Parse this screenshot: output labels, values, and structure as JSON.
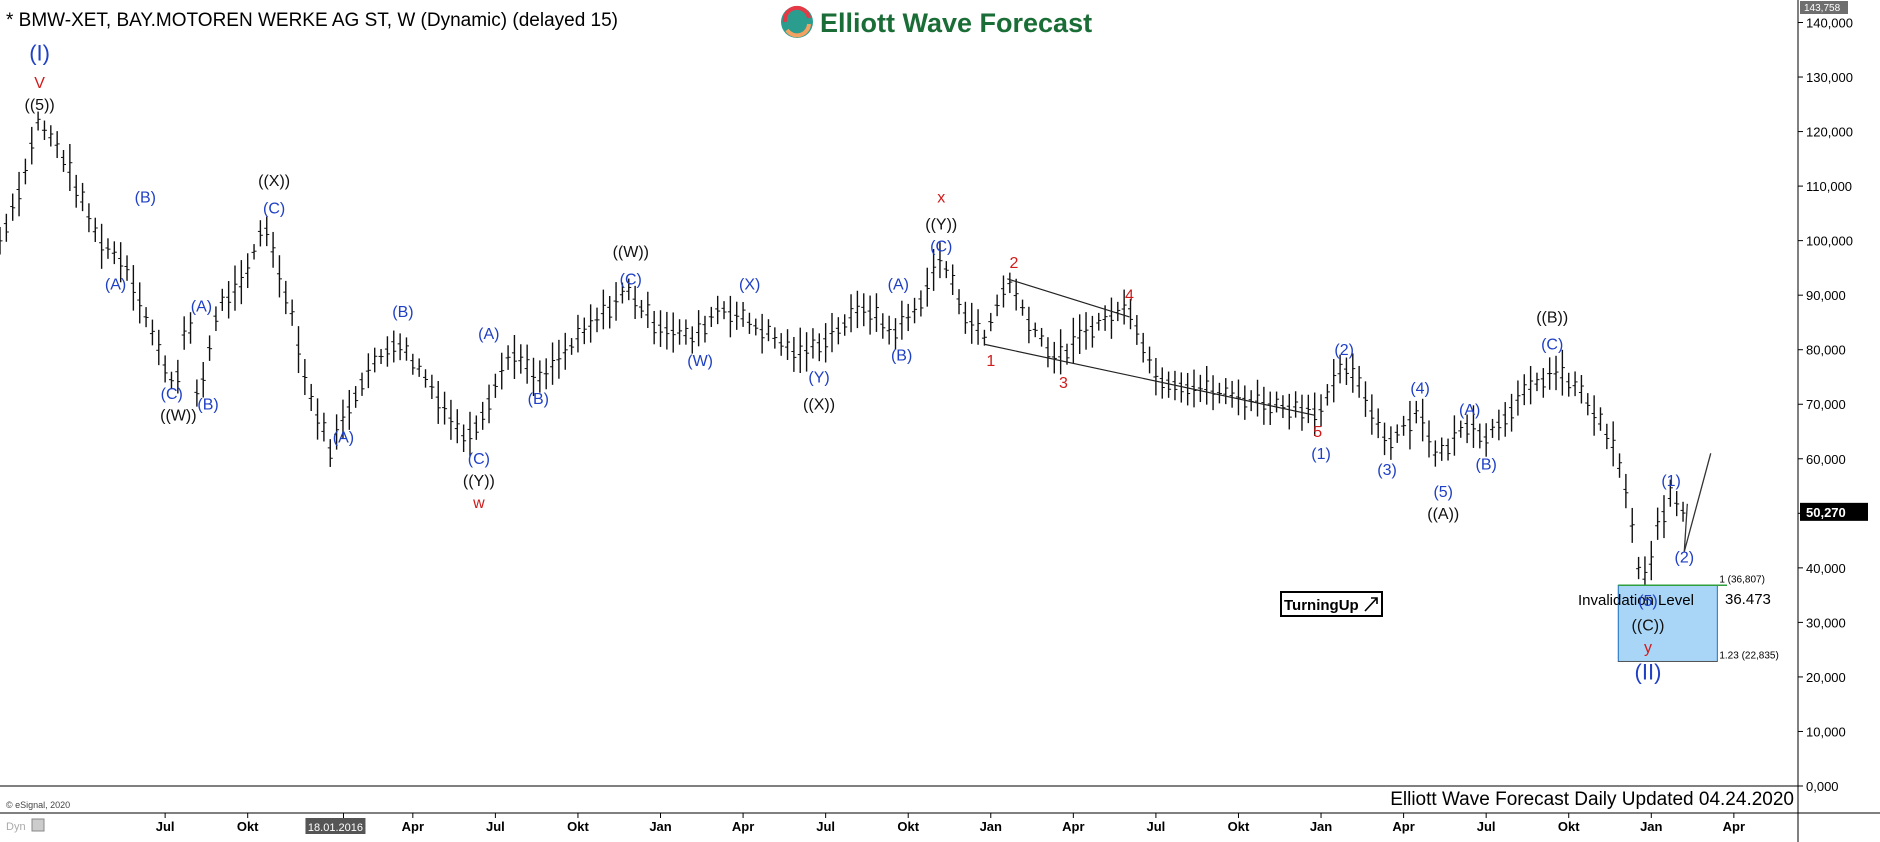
{
  "header": {
    "title": "* BMW-XET, BAY.MOTOREN WERKE AG ST, W (Dynamic) (delayed 15)",
    "logo_text": "Elliott Wave Forecast"
  },
  "colors": {
    "blue_label": "#1f3fc4",
    "red_label": "#d11b1b",
    "black_label": "#111111",
    "box_fill": "#a9d6f7",
    "box_stroke": "#1c6fbf",
    "green_line": "#2e9e3e",
    "logo_green": "#1a6d36"
  },
  "footer": {
    "updated": "Elliott Wave Forecast Daily Updated 04.24.2020",
    "copyright": "© eSignal, 2020",
    "dyn": "Dyn"
  },
  "turning_up_badge": "TurningUp",
  "box_labels": {
    "fib1": "1 (36,807)",
    "fib123": "1.23 (22,835)",
    "invalidation": "Invalidation Level",
    "invalidation_value": "36.473"
  },
  "chart_data": {
    "type": "ohlc",
    "ylim": [
      0,
      143758
    ],
    "y_ticks": [
      "0,000",
      "10,000",
      "20,000",
      "30,000",
      "40,000",
      "50,000",
      "60,000",
      "70,000",
      "80,000",
      "90,000",
      "100,000",
      "110,000",
      "120,000",
      "130,000",
      "140,000"
    ],
    "y_tick_values": [
      0,
      10000,
      20000,
      30000,
      40000,
      50000,
      60000,
      70000,
      80000,
      90000,
      100000,
      110000,
      120000,
      130000,
      140000
    ],
    "y_max_label": "143,758",
    "last_price_label": "50,270",
    "last_price": 50270,
    "x_start": 2015.0,
    "x_end": 2020.42,
    "x_ticks": [
      {
        "label": "Jul",
        "x": 2015.5
      },
      {
        "label": "Okt",
        "x": 2015.75
      },
      {
        "label": "18.01.2016",
        "x": 2016.04,
        "highlight": true
      },
      {
        "label": "Apr",
        "x": 2016.25
      },
      {
        "label": "Jul",
        "x": 2016.5
      },
      {
        "label": "Okt",
        "x": 2016.75
      },
      {
        "label": "Jan",
        "x": 2017.0
      },
      {
        "label": "Apr",
        "x": 2017.25
      },
      {
        "label": "Jul",
        "x": 2017.5
      },
      {
        "label": "Okt",
        "x": 2017.75
      },
      {
        "label": "Jan",
        "x": 2018.0
      },
      {
        "label": "Apr",
        "x": 2018.25
      },
      {
        "label": "Jul",
        "x": 2018.5
      },
      {
        "label": "Okt",
        "x": 2018.75
      },
      {
        "label": "Jan",
        "x": 2019.0
      },
      {
        "label": "Apr",
        "x": 2019.25
      },
      {
        "label": "Jul",
        "x": 2019.5
      },
      {
        "label": "Okt",
        "x": 2019.75
      },
      {
        "label": "Jan",
        "x": 2020.0
      },
      {
        "label": "Apr",
        "x": 2020.25
      }
    ],
    "path": [
      [
        2015.0,
        100000
      ],
      [
        2015.08,
        113000
      ],
      [
        2015.11,
        122000
      ],
      [
        2015.18,
        117000
      ],
      [
        2015.3,
        100000
      ],
      [
        2015.38,
        96000
      ],
      [
        2015.48,
        80000
      ],
      [
        2015.53,
        73000
      ],
      [
        2015.57,
        87000
      ],
      [
        2015.6,
        70000
      ],
      [
        2015.66,
        88000
      ],
      [
        2015.74,
        92000
      ],
      [
        2015.8,
        104000
      ],
      [
        2015.84,
        95000
      ],
      [
        2015.88,
        88000
      ],
      [
        2015.93,
        73000
      ],
      [
        2016.0,
        62000
      ],
      [
        2016.1,
        75000
      ],
      [
        2016.2,
        82000
      ],
      [
        2016.3,
        74000
      ],
      [
        2016.4,
        64000
      ],
      [
        2016.45,
        67000
      ],
      [
        2016.55,
        80000
      ],
      [
        2016.63,
        74000
      ],
      [
        2016.75,
        82000
      ],
      [
        2016.9,
        91000
      ],
      [
        2016.98,
        85000
      ],
      [
        2017.1,
        82000
      ],
      [
        2017.18,
        88000
      ],
      [
        2017.3,
        84000
      ],
      [
        2017.42,
        79000
      ],
      [
        2017.5,
        82000
      ],
      [
        2017.62,
        88000
      ],
      [
        2017.7,
        83000
      ],
      [
        2017.77,
        87000
      ],
      [
        2017.85,
        97000
      ],
      [
        2017.92,
        87000
      ],
      [
        2017.98,
        82000
      ],
      [
        2018.05,
        93000
      ],
      [
        2018.12,
        85000
      ],
      [
        2018.2,
        78000
      ],
      [
        2018.3,
        84000
      ],
      [
        2018.42,
        88000
      ],
      [
        2018.5,
        75000
      ],
      [
        2018.7,
        72000
      ],
      [
        2018.85,
        70000
      ],
      [
        2019.0,
        69000
      ],
      [
        2019.07,
        77000
      ],
      [
        2019.12,
        73000
      ],
      [
        2019.2,
        63000
      ],
      [
        2019.3,
        69000
      ],
      [
        2019.35,
        60000
      ],
      [
        2019.45,
        67000
      ],
      [
        2019.5,
        64000
      ],
      [
        2019.6,
        71000
      ],
      [
        2019.7,
        76000
      ],
      [
        2019.78,
        73000
      ],
      [
        2019.88,
        63000
      ],
      [
        2019.93,
        53000
      ],
      [
        2019.96,
        40000
      ],
      [
        2019.99,
        37000
      ],
      [
        2020.02,
        48000
      ],
      [
        2020.06,
        53000
      ],
      [
        2020.1,
        50270
      ]
    ],
    "wave_labels": [
      {
        "text": "(I)",
        "x": 2015.12,
        "y": 133000,
        "color": "blue",
        "size": "lg"
      },
      {
        "text": "V",
        "x": 2015.12,
        "y": 128000,
        "color": "red"
      },
      {
        "text": "((5))",
        "x": 2015.12,
        "y": 124000,
        "color": "black"
      },
      {
        "text": "(B)",
        "x": 2015.44,
        "y": 107000,
        "color": "blue"
      },
      {
        "text": "(A)",
        "x": 2015.35,
        "y": 91000,
        "color": "blue"
      },
      {
        "text": "(C)",
        "x": 2015.52,
        "y": 71000,
        "color": "blue"
      },
      {
        "text": "((W))",
        "x": 2015.54,
        "y": 67000,
        "color": "black"
      },
      {
        "text": "(A)",
        "x": 2015.61,
        "y": 87000,
        "color": "blue"
      },
      {
        "text": "(B)",
        "x": 2015.63,
        "y": 69000,
        "color": "blue"
      },
      {
        "text": "((X))",
        "x": 2015.83,
        "y": 110000,
        "color": "black"
      },
      {
        "text": "(C)",
        "x": 2015.83,
        "y": 105000,
        "color": "blue"
      },
      {
        "text": "(A)",
        "x": 2016.04,
        "y": 63000,
        "color": "blue"
      },
      {
        "text": "(B)",
        "x": 2016.22,
        "y": 86000,
        "color": "blue"
      },
      {
        "text": "(A)",
        "x": 2016.48,
        "y": 82000,
        "color": "blue"
      },
      {
        "text": "(B)",
        "x": 2016.63,
        "y": 70000,
        "color": "blue"
      },
      {
        "text": "(C)",
        "x": 2016.45,
        "y": 59000,
        "color": "blue"
      },
      {
        "text": "((Y))",
        "x": 2016.45,
        "y": 55000,
        "color": "black"
      },
      {
        "text": "w",
        "x": 2016.45,
        "y": 51000,
        "color": "red"
      },
      {
        "text": "((W))",
        "x": 2016.91,
        "y": 97000,
        "color": "black"
      },
      {
        "text": "(C)",
        "x": 2016.91,
        "y": 92000,
        "color": "blue"
      },
      {
        "text": "(X)",
        "x": 2017.27,
        "y": 91000,
        "color": "blue"
      },
      {
        "text": "(W)",
        "x": 2017.12,
        "y": 77000,
        "color": "blue"
      },
      {
        "text": "(Y)",
        "x": 2017.48,
        "y": 74000,
        "color": "blue"
      },
      {
        "text": "((X))",
        "x": 2017.48,
        "y": 69000,
        "color": "black"
      },
      {
        "text": "(A)",
        "x": 2017.72,
        "y": 91000,
        "color": "blue"
      },
      {
        "text": "(B)",
        "x": 2017.73,
        "y": 78000,
        "color": "blue"
      },
      {
        "text": "x",
        "x": 2017.85,
        "y": 107000,
        "color": "red"
      },
      {
        "text": "((Y))",
        "x": 2017.85,
        "y": 102000,
        "color": "black"
      },
      {
        "text": "(C)",
        "x": 2017.85,
        "y": 98000,
        "color": "blue"
      },
      {
        "text": "2",
        "x": 2018.07,
        "y": 95000,
        "color": "red"
      },
      {
        "text": "1",
        "x": 2018.0,
        "y": 77000,
        "color": "red"
      },
      {
        "text": "3",
        "x": 2018.22,
        "y": 73000,
        "color": "red"
      },
      {
        "text": "4",
        "x": 2018.42,
        "y": 89000,
        "color": "red"
      },
      {
        "text": "5",
        "x": 2018.99,
        "y": 64000,
        "color": "red"
      },
      {
        "text": "(1)",
        "x": 2019.0,
        "y": 60000,
        "color": "blue"
      },
      {
        "text": "(2)",
        "x": 2019.07,
        "y": 79000,
        "color": "blue"
      },
      {
        "text": "(3)",
        "x": 2019.2,
        "y": 57000,
        "color": "blue"
      },
      {
        "text": "(4)",
        "x": 2019.3,
        "y": 72000,
        "color": "blue"
      },
      {
        "text": "(5)",
        "x": 2019.37,
        "y": 53000,
        "color": "blue"
      },
      {
        "text": "((A))",
        "x": 2019.37,
        "y": 49000,
        "color": "black"
      },
      {
        "text": "(A)",
        "x": 2019.45,
        "y": 68000,
        "color": "blue"
      },
      {
        "text": "(B)",
        "x": 2019.5,
        "y": 58000,
        "color": "blue"
      },
      {
        "text": "((B))",
        "x": 2019.7,
        "y": 85000,
        "color": "black"
      },
      {
        "text": "(C)",
        "x": 2019.7,
        "y": 80000,
        "color": "blue"
      },
      {
        "text": "(1)",
        "x": 2020.06,
        "y": 55000,
        "color": "blue"
      },
      {
        "text": "(2)",
        "x": 2020.1,
        "y": 41000,
        "color": "blue"
      },
      {
        "text": "(5)",
        "x": 2019.99,
        "y": 33000,
        "color": "blue"
      },
      {
        "text": "((C))",
        "x": 2019.99,
        "y": 28500,
        "color": "black"
      },
      {
        "text": "y",
        "x": 2019.99,
        "y": 24500,
        "color": "red"
      },
      {
        "text": "(II)",
        "x": 2019.99,
        "y": 19500,
        "color": "blue",
        "size": "lg"
      }
    ],
    "channel_lines": [
      [
        [
          2017.98,
          81000
        ],
        [
          2018.98,
          68000
        ]
      ],
      [
        [
          2018.05,
          93000
        ],
        [
          2018.42,
          86000
        ]
      ]
    ],
    "projection": [
      [
        2020.1,
        43000
      ],
      [
        2020.18,
        61000
      ]
    ],
    "target_box": {
      "x0": 2019.9,
      "x1": 2020.2,
      "y_top": 36807,
      "y_bottom": 22835
    }
  }
}
